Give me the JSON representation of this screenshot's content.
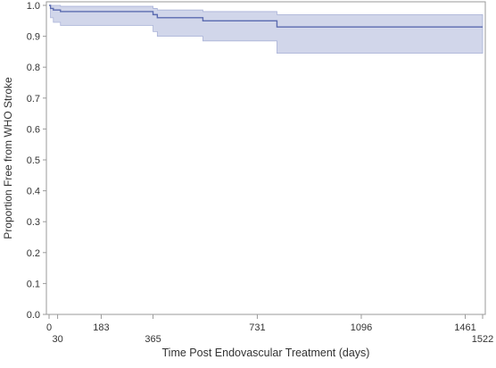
{
  "chart_data": {
    "type": "line",
    "title": "",
    "xlabel": "Time Post Endovascular Treatment (days)",
    "ylabel": "Proportion Free from WHO Stroke",
    "xlim": [
      0,
      1540
    ],
    "ylim": [
      0.0,
      1.0
    ],
    "x_ticks_top": [
      0,
      183,
      731,
      1096,
      1461
    ],
    "x_ticks_bottom": [
      30,
      365,
      1522
    ],
    "y_ticks": [
      0.0,
      0.1,
      0.2,
      0.3,
      0.4,
      0.5,
      0.6,
      0.7,
      0.8,
      0.9,
      1.0
    ],
    "grid": false,
    "series": [
      {
        "step": true,
        "color": "#5b6bb0",
        "band_color": "#c9cfe6",
        "points": [
          {
            "x": 0,
            "y": 1.0,
            "lower": 1.0,
            "upper": 1.0
          },
          {
            "x": 5,
            "y": 0.99,
            "lower": 0.96,
            "upper": 1.0
          },
          {
            "x": 15,
            "y": 0.985,
            "lower": 0.945,
            "upper": 1.0
          },
          {
            "x": 40,
            "y": 0.98,
            "lower": 0.935,
            "upper": 0.997
          },
          {
            "x": 365,
            "y": 0.97,
            "lower": 0.915,
            "upper": 0.99
          },
          {
            "x": 380,
            "y": 0.96,
            "lower": 0.9,
            "upper": 0.985
          },
          {
            "x": 540,
            "y": 0.95,
            "lower": 0.885,
            "upper": 0.98
          },
          {
            "x": 800,
            "y": 0.93,
            "lower": 0.845,
            "upper": 0.97
          },
          {
            "x": 1522,
            "y": 0.93,
            "lower": 0.845,
            "upper": 0.97
          }
        ]
      }
    ]
  }
}
